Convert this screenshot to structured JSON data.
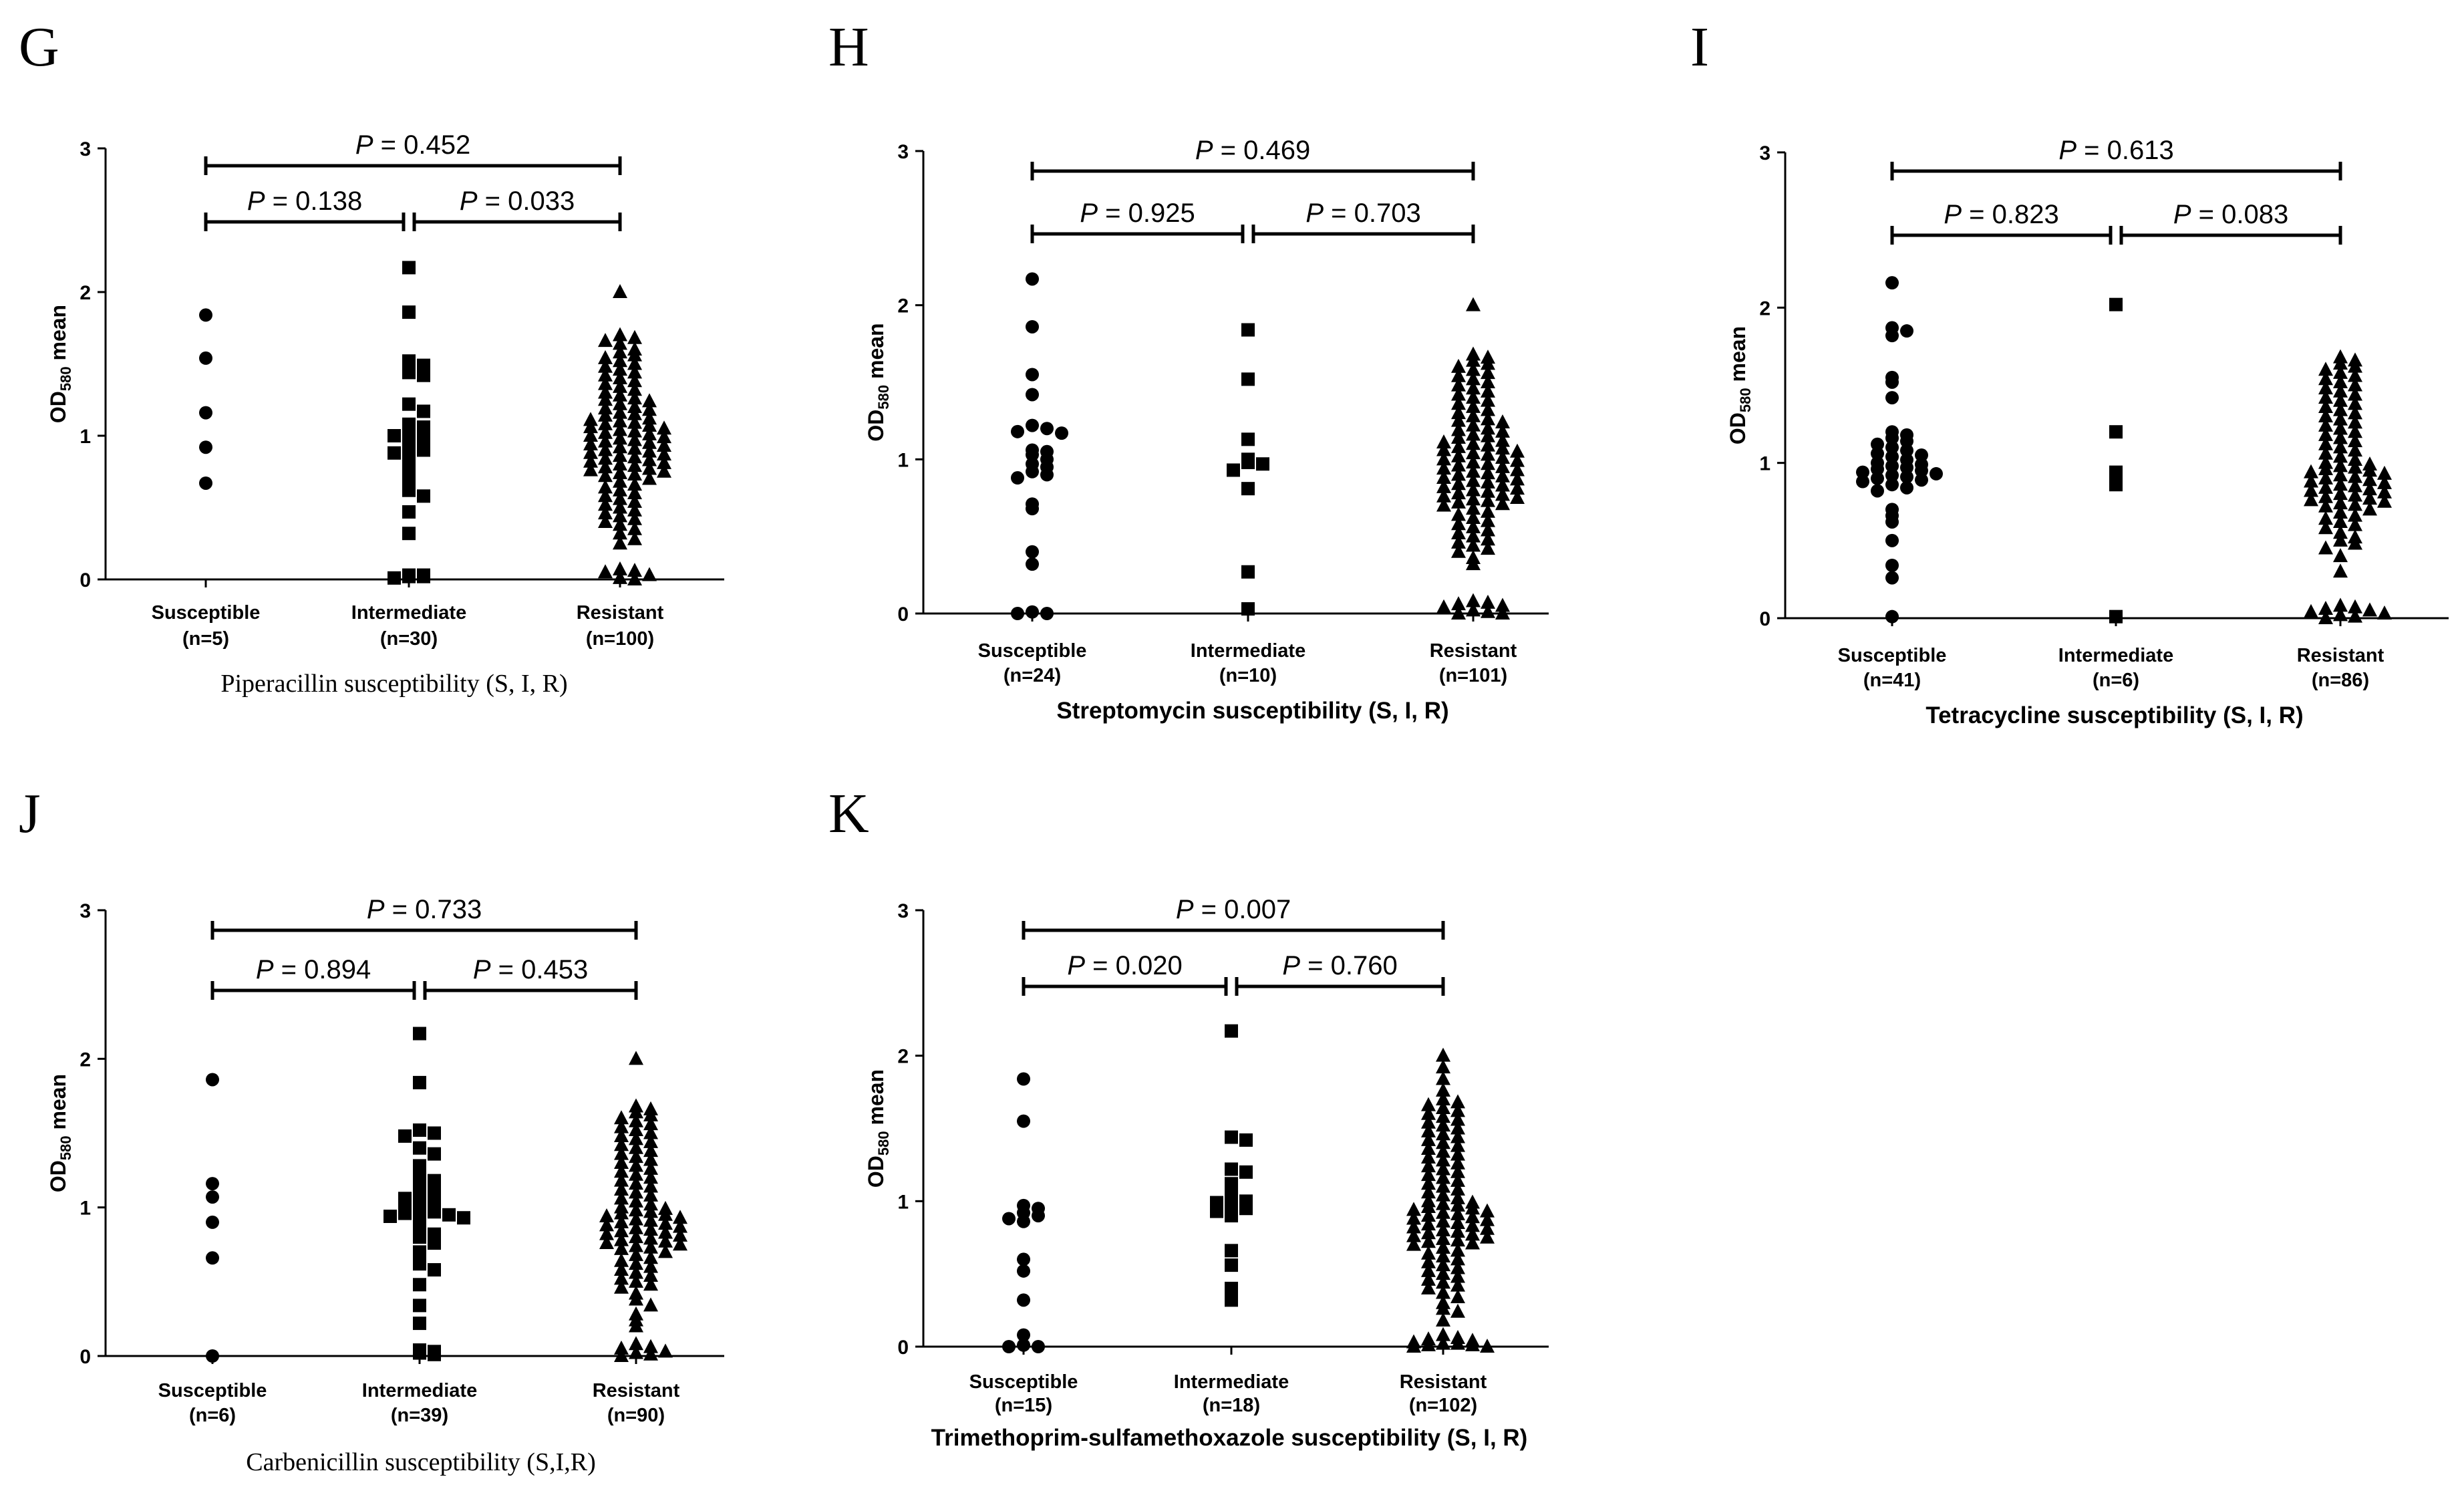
{
  "figure": {
    "marker_color": "#000000",
    "background": "#ffffff"
  },
  "chart_data": [
    {
      "panel_label": "G",
      "type": "scatter",
      "marker": "circle/square/triangle",
      "xlabel": "Piperacillin  susceptibility  (S, I, R)",
      "xlabel_style": "serif",
      "ylabel": "OD580 mean",
      "ylim": [
        0,
        3
      ],
      "yticks": [
        0,
        1,
        2,
        3
      ],
      "groups": [
        {
          "label": "Susceptible",
          "n_label": "(n=5)",
          "marker": "circle",
          "values": [
            1.84,
            1.54,
            1.16,
            0.92,
            0.67
          ]
        },
        {
          "label": "Intermediate",
          "n_label": "(n=30)",
          "marker": "square",
          "values": [
            2.17,
            1.86,
            1.52,
            1.49,
            1.44,
            1.42,
            1.22,
            1.17,
            1.08,
            1.06,
            1.04,
            1.02,
            1.0,
            0.95,
            0.93,
            0.92,
            0.9,
            0.88,
            0.85,
            0.77,
            0.7,
            0.62,
            0.58,
            0.47,
            0.32,
            0.03,
            0.03,
            0.02,
            0.02,
            0.01
          ]
        },
        {
          "label": "Resistant",
          "n_label": "(n=100)",
          "marker": "triangle",
          "values": [
            2.0,
            1.7,
            1.68,
            1.66,
            1.64,
            1.6,
            1.58,
            1.56,
            1.54,
            1.52,
            1.5,
            1.48,
            1.46,
            1.44,
            1.42,
            1.4,
            1.38,
            1.36,
            1.34,
            1.32,
            1.3,
            1.28,
            1.26,
            1.25,
            1.24,
            1.22,
            1.2,
            1.19,
            1.18,
            1.16,
            1.15,
            1.14,
            1.12,
            1.11,
            1.1,
            1.09,
            1.08,
            1.07,
            1.06,
            1.05,
            1.04,
            1.03,
            1.02,
            1.01,
            1.0,
            0.99,
            0.98,
            0.97,
            0.96,
            0.95,
            0.94,
            0.93,
            0.92,
            0.91,
            0.9,
            0.89,
            0.88,
            0.87,
            0.86,
            0.85,
            0.84,
            0.83,
            0.82,
            0.81,
            0.8,
            0.79,
            0.78,
            0.77,
            0.76,
            0.75,
            0.74,
            0.73,
            0.72,
            0.7,
            0.68,
            0.66,
            0.64,
            0.62,
            0.6,
            0.58,
            0.56,
            0.54,
            0.52,
            0.5,
            0.48,
            0.46,
            0.44,
            0.42,
            0.4,
            0.38,
            0.35,
            0.32,
            0.28,
            0.25,
            0.07,
            0.06,
            0.05,
            0.03,
            0.01,
            0.0
          ]
        }
      ],
      "comparisons": [
        {
          "level": "top",
          "from": 0,
          "to": 2,
          "label": "= 0.452"
        },
        {
          "level": "low",
          "from": 0,
          "to": 1,
          "label": "= 0.138"
        },
        {
          "level": "low",
          "from": 1,
          "to": 2,
          "label": "= 0.033"
        }
      ]
    },
    {
      "panel_label": "H",
      "type": "scatter",
      "xlabel": "Streptomycin susceptibility (S, I, R)",
      "xlabel_style": "bold",
      "ylabel": "OD580 mean",
      "ylim": [
        0,
        3
      ],
      "yticks": [
        0,
        1,
        2,
        3
      ],
      "groups": [
        {
          "label": "Susceptible",
          "n_label": "(n=24)",
          "marker": "circle",
          "values": [
            2.17,
            1.86,
            1.55,
            1.42,
            1.22,
            1.2,
            1.18,
            1.17,
            1.06,
            1.05,
            1.03,
            1.0,
            0.97,
            0.95,
            0.92,
            0.9,
            0.88,
            0.71,
            0.68,
            0.4,
            0.32,
            0.01,
            0.0,
            0.0
          ]
        },
        {
          "label": "Intermediate",
          "n_label": "(n=10)",
          "marker": "square",
          "values": [
            1.84,
            1.52,
            1.13,
            1.0,
            0.98,
            0.97,
            0.93,
            0.81,
            0.27,
            0.03
          ]
        },
        {
          "label": "Resistant",
          "n_label": "(n=101)",
          "marker": "triangle",
          "values": [
            2.0,
            1.68,
            1.66,
            1.64,
            1.62,
            1.6,
            1.58,
            1.56,
            1.54,
            1.52,
            1.5,
            1.48,
            1.46,
            1.44,
            1.42,
            1.4,
            1.38,
            1.36,
            1.34,
            1.32,
            1.3,
            1.28,
            1.26,
            1.25,
            1.24,
            1.22,
            1.2,
            1.19,
            1.18,
            1.16,
            1.15,
            1.14,
            1.12,
            1.11,
            1.1,
            1.09,
            1.08,
            1.07,
            1.06,
            1.05,
            1.04,
            1.03,
            1.02,
            1.01,
            1.0,
            0.99,
            0.98,
            0.97,
            0.96,
            0.95,
            0.94,
            0.93,
            0.92,
            0.91,
            0.9,
            0.89,
            0.88,
            0.87,
            0.86,
            0.85,
            0.84,
            0.83,
            0.82,
            0.81,
            0.8,
            0.79,
            0.78,
            0.77,
            0.76,
            0.75,
            0.74,
            0.73,
            0.72,
            0.71,
            0.7,
            0.68,
            0.66,
            0.64,
            0.62,
            0.6,
            0.58,
            0.56,
            0.54,
            0.52,
            0.5,
            0.48,
            0.46,
            0.44,
            0.42,
            0.4,
            0.36,
            0.32,
            0.08,
            0.07,
            0.06,
            0.05,
            0.04,
            0.02,
            0.01,
            0.0,
            0.0
          ]
        }
      ],
      "comparisons": [
        {
          "level": "top",
          "from": 0,
          "to": 2,
          "label": "= 0.469"
        },
        {
          "level": "low",
          "from": 0,
          "to": 1,
          "label": "= 0.925"
        },
        {
          "level": "low",
          "from": 1,
          "to": 2,
          "label": "= 0.703"
        }
      ]
    },
    {
      "panel_label": "I",
      "type": "scatter",
      "xlabel": "Tetracycline susceptibility (S, I, R)",
      "xlabel_style": "bold",
      "ylabel": "OD580 mean",
      "ylim": [
        0,
        3
      ],
      "yticks": [
        0,
        1,
        2,
        3
      ],
      "groups": [
        {
          "label": "Susceptible",
          "n_label": "(n=41)",
          "marker": "circle",
          "values": [
            2.16,
            1.87,
            1.85,
            1.82,
            1.55,
            1.52,
            1.42,
            1.2,
            1.18,
            1.16,
            1.14,
            1.12,
            1.1,
            1.08,
            1.06,
            1.05,
            1.04,
            1.02,
            1.0,
            0.99,
            0.98,
            0.97,
            0.96,
            0.95,
            0.94,
            0.93,
            0.92,
            0.91,
            0.9,
            0.89,
            0.88,
            0.86,
            0.84,
            0.82,
            0.7,
            0.66,
            0.62,
            0.5,
            0.34,
            0.26,
            0.01
          ]
        },
        {
          "label": "Intermediate",
          "n_label": "(n=6)",
          "marker": "square",
          "values": [
            2.02,
            1.2,
            0.94,
            0.91,
            0.86,
            0.01
          ]
        },
        {
          "label": "Resistant",
          "n_label": "(n=86)",
          "marker": "triangle",
          "values": [
            1.68,
            1.66,
            1.64,
            1.62,
            1.6,
            1.58,
            1.56,
            1.54,
            1.52,
            1.5,
            1.48,
            1.46,
            1.44,
            1.42,
            1.4,
            1.38,
            1.36,
            1.34,
            1.32,
            1.3,
            1.28,
            1.26,
            1.24,
            1.22,
            1.2,
            1.18,
            1.16,
            1.14,
            1.12,
            1.1,
            1.08,
            1.06,
            1.04,
            1.02,
            1.0,
            0.99,
            0.98,
            0.97,
            0.96,
            0.95,
            0.94,
            0.93,
            0.92,
            0.91,
            0.9,
            0.89,
            0.88,
            0.87,
            0.86,
            0.85,
            0.84,
            0.83,
            0.82,
            0.81,
            0.8,
            0.79,
            0.78,
            0.77,
            0.76,
            0.75,
            0.74,
            0.73,
            0.72,
            0.7,
            0.68,
            0.66,
            0.64,
            0.62,
            0.6,
            0.58,
            0.55,
            0.52,
            0.5,
            0.48,
            0.45,
            0.4,
            0.3,
            0.08,
            0.07,
            0.06,
            0.05,
            0.04,
            0.03,
            0.02,
            0.01,
            0.0
          ]
        }
      ],
      "comparisons": [
        {
          "level": "top",
          "from": 0,
          "to": 2,
          "label": "= 0.613"
        },
        {
          "level": "low",
          "from": 0,
          "to": 1,
          "label": "= 0.823"
        },
        {
          "level": "low",
          "from": 1,
          "to": 2,
          "label": "= 0.083"
        }
      ]
    },
    {
      "panel_label": "J",
      "type": "scatter",
      "xlabel": "Carbenicillin  susceptibility  (S,I,R)",
      "xlabel_style": "serif",
      "ylabel": "OD580 mean",
      "ylim": [
        0,
        3
      ],
      "yticks": [
        0,
        1,
        2,
        3
      ],
      "groups": [
        {
          "label": "Susceptible",
          "n_label": "(n=6)",
          "marker": "circle",
          "values": [
            1.86,
            1.16,
            1.07,
            0.9,
            0.66,
            0.0
          ]
        },
        {
          "label": "Intermediate",
          "n_label": "(n=39)",
          "marker": "square",
          "values": [
            2.17,
            1.84,
            1.52,
            1.5,
            1.48,
            1.4,
            1.36,
            1.28,
            1.22,
            1.18,
            1.16,
            1.12,
            1.1,
            1.08,
            1.06,
            1.04,
            1.02,
            1.0,
            0.98,
            0.97,
            0.96,
            0.95,
            0.94,
            0.93,
            0.9,
            0.86,
            0.82,
            0.8,
            0.76,
            0.7,
            0.62,
            0.58,
            0.48,
            0.34,
            0.22,
            0.04,
            0.03,
            0.02,
            0.01
          ]
        },
        {
          "label": "Resistant",
          "n_label": "(n=90)",
          "marker": "triangle",
          "values": [
            2.0,
            1.68,
            1.66,
            1.64,
            1.62,
            1.6,
            1.58,
            1.56,
            1.54,
            1.52,
            1.5,
            1.48,
            1.46,
            1.44,
            1.42,
            1.4,
            1.38,
            1.36,
            1.34,
            1.32,
            1.3,
            1.28,
            1.26,
            1.24,
            1.22,
            1.2,
            1.18,
            1.16,
            1.14,
            1.12,
            1.1,
            1.08,
            1.06,
            1.04,
            1.02,
            1.0,
            0.99,
            0.98,
            0.97,
            0.96,
            0.95,
            0.94,
            0.93,
            0.92,
            0.91,
            0.9,
            0.89,
            0.88,
            0.87,
            0.86,
            0.85,
            0.84,
            0.83,
            0.82,
            0.81,
            0.8,
            0.79,
            0.78,
            0.77,
            0.76,
            0.75,
            0.74,
            0.73,
            0.72,
            0.7,
            0.68,
            0.66,
            0.64,
            0.62,
            0.6,
            0.58,
            0.56,
            0.54,
            0.52,
            0.5,
            0.48,
            0.46,
            0.42,
            0.38,
            0.34,
            0.28,
            0.24,
            0.2,
            0.08,
            0.06,
            0.05,
            0.03,
            0.02,
            0.01,
            0.0
          ]
        }
      ],
      "comparisons": [
        {
          "level": "top",
          "from": 0,
          "to": 2,
          "label": "= 0.733"
        },
        {
          "level": "low",
          "from": 0,
          "to": 1,
          "label": "= 0.894"
        },
        {
          "level": "low",
          "from": 1,
          "to": 2,
          "label": "= 0.453"
        }
      ]
    },
    {
      "panel_label": "K",
      "type": "scatter",
      "xlabel": "Trimethoprim-sulfamethoxazole susceptibility (S, I, R)",
      "xlabel_style": "bold",
      "ylabel": "OD580 mean",
      "ylim": [
        0,
        3
      ],
      "yticks": [
        0,
        1,
        2,
        3
      ],
      "groups": [
        {
          "label": "Susceptible",
          "n_label": "(n=15)",
          "marker": "circle",
          "values": [
            1.84,
            1.55,
            0.97,
            0.95,
            0.92,
            0.9,
            0.88,
            0.86,
            0.6,
            0.52,
            0.32,
            0.08,
            0.01,
            0.0,
            0.0
          ]
        },
        {
          "label": "Intermediate",
          "n_label": "(n=18)",
          "marker": "square",
          "values": [
            2.17,
            1.44,
            1.42,
            1.22,
            1.2,
            1.12,
            1.1,
            1.02,
            1.0,
            0.99,
            0.97,
            0.95,
            0.93,
            0.9,
            0.66,
            0.56,
            0.4,
            0.32
          ]
        },
        {
          "label": "Resistant",
          "n_label": "(n=102)",
          "marker": "triangle",
          "values": [
            2.0,
            1.92,
            1.84,
            1.76,
            1.7,
            1.68,
            1.66,
            1.64,
            1.62,
            1.6,
            1.58,
            1.56,
            1.54,
            1.52,
            1.5,
            1.48,
            1.46,
            1.44,
            1.42,
            1.4,
            1.38,
            1.36,
            1.34,
            1.32,
            1.3,
            1.28,
            1.26,
            1.24,
            1.22,
            1.2,
            1.18,
            1.16,
            1.14,
            1.12,
            1.1,
            1.08,
            1.06,
            1.04,
            1.02,
            1.0,
            0.99,
            0.98,
            0.97,
            0.96,
            0.95,
            0.94,
            0.93,
            0.92,
            0.91,
            0.9,
            0.89,
            0.88,
            0.87,
            0.86,
            0.85,
            0.84,
            0.83,
            0.82,
            0.81,
            0.8,
            0.79,
            0.78,
            0.77,
            0.76,
            0.75,
            0.74,
            0.73,
            0.72,
            0.71,
            0.7,
            0.68,
            0.66,
            0.64,
            0.62,
            0.6,
            0.58,
            0.56,
            0.54,
            0.52,
            0.5,
            0.48,
            0.46,
            0.44,
            0.42,
            0.4,
            0.37,
            0.34,
            0.3,
            0.26,
            0.24,
            0.18,
            0.08,
            0.06,
            0.05,
            0.04,
            0.03,
            0.02,
            0.02,
            0.01,
            0.01,
            0.0,
            0.0
          ]
        }
      ],
      "comparisons": [
        {
          "level": "top",
          "from": 0,
          "to": 2,
          "label": "= 0.007"
        },
        {
          "level": "low",
          "from": 0,
          "to": 1,
          "label": "= 0.020"
        },
        {
          "level": "low",
          "from": 1,
          "to": 2,
          "label": "= 0.760"
        }
      ]
    }
  ]
}
